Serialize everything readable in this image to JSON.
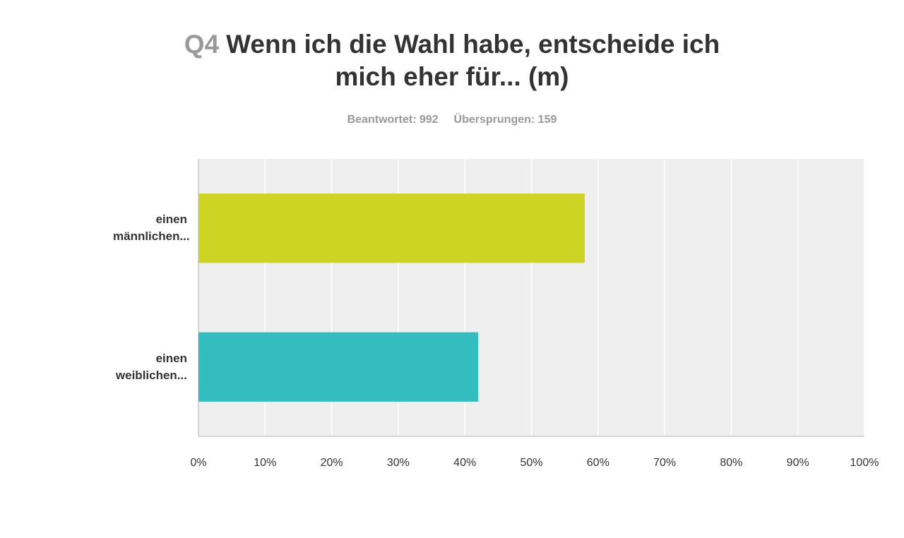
{
  "chart_data": {
    "type": "hbar",
    "title_prefix": "Q4",
    "title": "Wenn ich die Wahl habe, entscheide ich mich eher für... (m)",
    "stats": [
      "Beantwortet: 992",
      "Übersprungen: 159"
    ],
    "categories": [
      "einen männlichen...",
      "einen weiblichen..."
    ],
    "values": [
      58,
      42
    ],
    "colors": [
      "#cdd424",
      "#33bdbf"
    ],
    "xlim": [
      0,
      100
    ],
    "xticks": [
      {
        "value": 0,
        "label": "0%"
      },
      {
        "value": 10,
        "label": "10%"
      },
      {
        "value": 20,
        "label": "20%"
      },
      {
        "value": 30,
        "label": "30%"
      },
      {
        "value": 40,
        "label": "40%"
      },
      {
        "value": 50,
        "label": "50%"
      },
      {
        "value": 60,
        "label": "60%"
      },
      {
        "value": 70,
        "label": "70%"
      },
      {
        "value": 80,
        "label": "80%"
      },
      {
        "value": 90,
        "label": "90%"
      },
      {
        "value": 100,
        "label": "100%"
      }
    ],
    "grid": true
  }
}
